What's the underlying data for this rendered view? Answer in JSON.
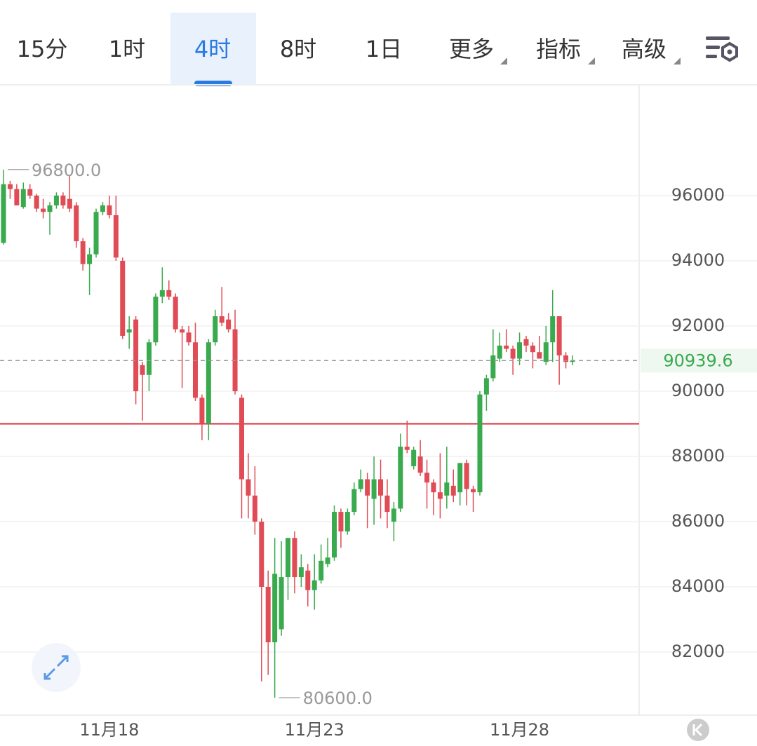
{
  "tabs": [
    "15分",
    "1时",
    "4时",
    "8时",
    "1日",
    "更多",
    "指标",
    "高级"
  ],
  "active_tab": 2,
  "chart_data": {
    "type": "candlestick",
    "categories": [
      null,
      null,
      null,
      null,
      null,
      null,
      null,
      null,
      null,
      null,
      null,
      null,
      null,
      null,
      null,
      null,
      "11月18",
      null,
      null,
      null,
      null,
      null,
      null,
      null,
      null,
      null,
      null,
      null,
      null,
      null,
      null,
      null,
      null,
      null,
      null,
      null,
      null,
      null,
      null,
      null,
      null,
      null,
      null,
      null,
      null,
      null,
      null,
      "11月23",
      null,
      null,
      null,
      null,
      null,
      null,
      null,
      null,
      null,
      null,
      null,
      null,
      null,
      null,
      null,
      null,
      null,
      null,
      null,
      null,
      null,
      null,
      null,
      null,
      null,
      null,
      null,
      null,
      null,
      null,
      "11月28",
      null,
      null,
      null,
      null,
      null,
      null,
      null,
      null
    ],
    "open": [
      94550,
      96350,
      96200,
      95650,
      96200,
      96000,
      95600,
      95500,
      95700,
      96000,
      95900,
      95700,
      94600,
      93900,
      94200,
      95500,
      95700,
      95400,
      94000,
      91800,
      92200,
      90800,
      90500,
      91500,
      92900,
      93100,
      92900,
      91900,
      91800,
      91500,
      89800,
      89000,
      91500,
      92300,
      92200,
      91900,
      89800,
      87300,
      86800,
      86000,
      84000,
      82300,
      82700,
      84300,
      85500,
      84300,
      84500,
      83900,
      84200,
      84700,
      84900,
      86300,
      85700,
      86300,
      87000,
      87300,
      86700,
      87300,
      86800,
      86000,
      86400,
      88300,
      87700,
      88000,
      87500,
      87200,
      86900,
      86800,
      87100,
      86900,
      87800,
      87000,
      86900,
      89900,
      90400,
      91000,
      91400,
      91300,
      91000,
      91600,
      91400,
      91200,
      90900,
      91500,
      92300,
      91100,
      90900
    ],
    "high": [
      96800,
      96450,
      96350,
      96400,
      96350,
      96050,
      95900,
      95800,
      96100,
      96100,
      96600,
      95800,
      94700,
      94400,
      95600,
      95800,
      96000,
      96000,
      94100,
      92300,
      92300,
      90900,
      91600,
      93000,
      93800,
      93400,
      93000,
      92000,
      92000,
      92100,
      89900,
      91600,
      92500,
      93200,
      92400,
      92500,
      89900,
      88100,
      87700,
      86100,
      84500,
      85500,
      85400,
      85500,
      85700,
      85000,
      84700,
      85000,
      85300,
      85500,
      86500,
      86400,
      86400,
      87200,
      87600,
      87500,
      88000,
      87900,
      87300,
      86600,
      88700,
      89100,
      88300,
      88500,
      87900,
      87300,
      88100,
      88300,
      87600,
      87800,
      87900,
      87100,
      90000,
      90500,
      91900,
      91800,
      91900,
      91400,
      91800,
      91700,
      91500,
      91700,
      92000,
      93100,
      92300,
      91200,
      91100
    ],
    "low": [
      94500,
      95900,
      95700,
      95600,
      95900,
      95500,
      95300,
      94800,
      95600,
      95600,
      95500,
      94400,
      93700,
      92950,
      94100,
      95400,
      95300,
      94000,
      91600,
      91300,
      89600,
      89100,
      90000,
      91400,
      92700,
      92800,
      91800,
      90100,
      91400,
      89700,
      88500,
      88500,
      91400,
      92000,
      91800,
      89900,
      86100,
      86100,
      85600,
      81100,
      81300,
      80600,
      82500,
      83600,
      83800,
      84000,
      83400,
      83300,
      84100,
      84600,
      84800,
      85200,
      85600,
      86200,
      86900,
      85800,
      85900,
      86100,
      85800,
      85400,
      86300,
      88100,
      87600,
      87400,
      86400,
      86200,
      86100,
      86400,
      86600,
      86500,
      86500,
      86300,
      86800,
      89400,
      90300,
      90900,
      91200,
      90500,
      90800,
      91200,
      90700,
      91000,
      90800,
      90900,
      90200,
      90700,
      90800
    ],
    "close": [
      96350,
      96200,
      95700,
      96200,
      96000,
      95600,
      95500,
      95700,
      96000,
      95700,
      95600,
      94600,
      93900,
      94200,
      95500,
      95700,
      95400,
      94100,
      91700,
      91900,
      90000,
      90500,
      91500,
      92900,
      93100,
      92900,
      91900,
      91800,
      91500,
      89800,
      89000,
      91500,
      92300,
      92100,
      91900,
      90000,
      87300,
      86800,
      86000,
      84000,
      82300,
      84400,
      84300,
      85500,
      84300,
      84600,
      83900,
      84200,
      84800,
      84900,
      86300,
      85700,
      86300,
      87000,
      87300,
      86800,
      87300,
      86800,
      86300,
      86400,
      88300,
      88200,
      88200,
      87500,
      87200,
      86900,
      86700,
      87200,
      86800,
      87800,
      87000,
      86900,
      89900,
      90400,
      91100,
      91400,
      91300,
      91000,
      91500,
      91400,
      91200,
      91000,
      91500,
      92300,
      91100,
      90900,
      90939.6
    ],
    "up_color": "#3aaa4e",
    "down_color": "#e04b55",
    "ylim": [
      80065,
      99376
    ],
    "yticks": [
      82000,
      84000,
      86000,
      88000,
      90000,
      92000,
      94000,
      96000
    ],
    "grid": true,
    "last_price": 90939.6,
    "level_line": {
      "value": 89000,
      "color": "#d9303a"
    },
    "annotations": [
      {
        "value": 96800,
        "label": "96800.0"
      },
      {
        "value": 80600,
        "label": "80600.0"
      }
    ]
  }
}
